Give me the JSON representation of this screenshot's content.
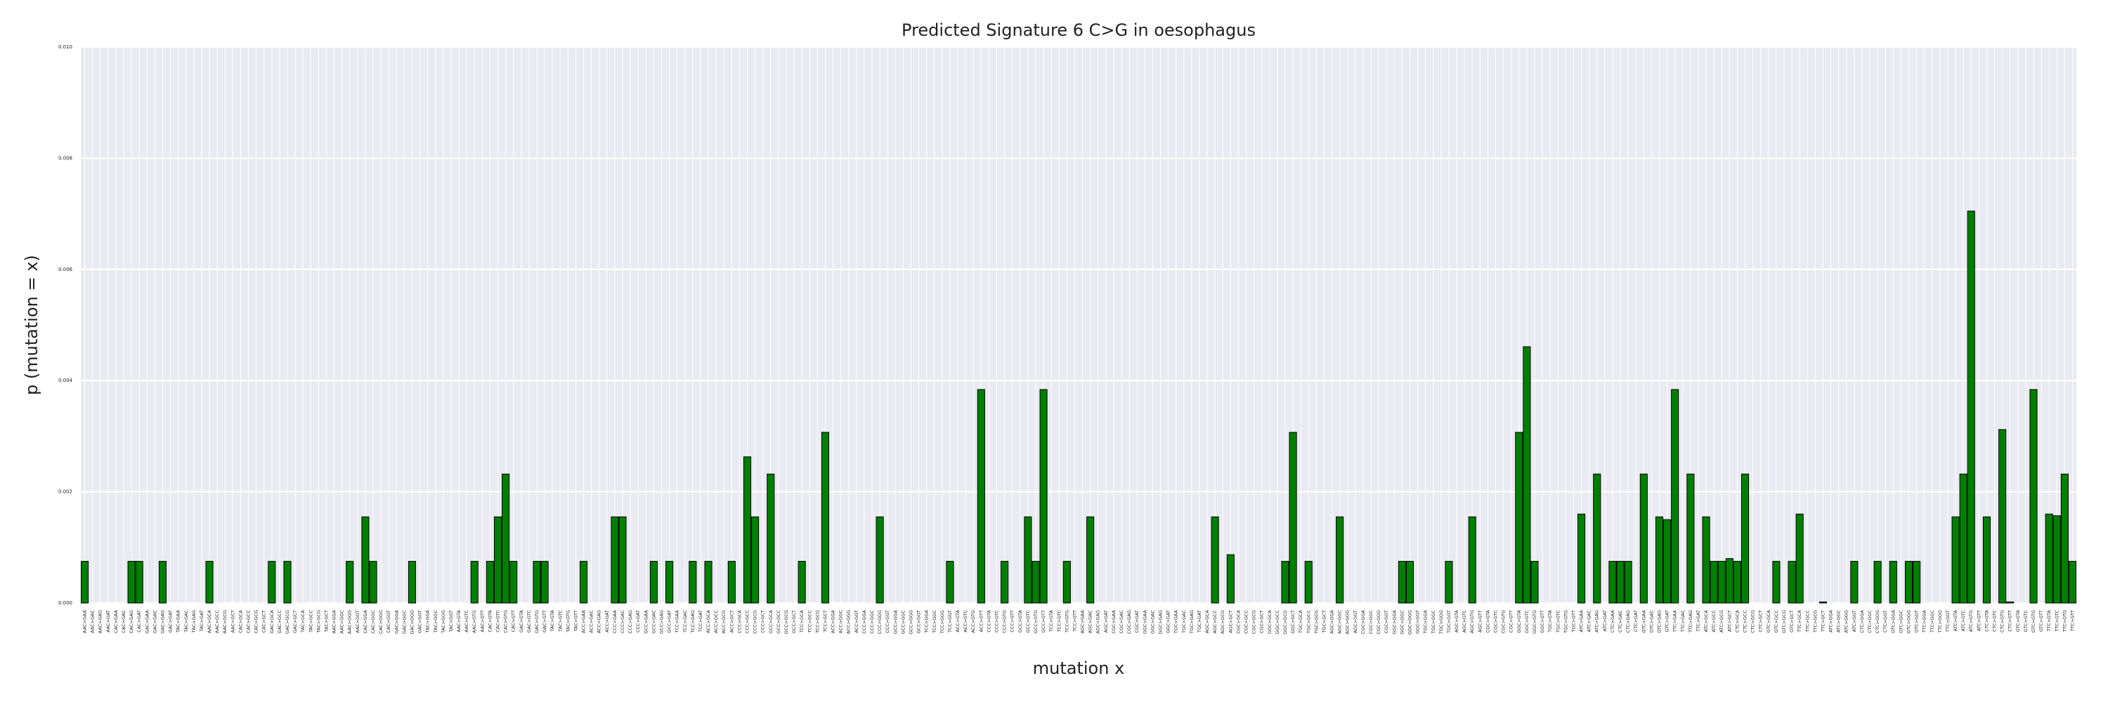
{
  "chart_data": {
    "type": "bar",
    "title": "Predicted Signature 6 C>G in oesophagus",
    "xlabel": "mutation x",
    "ylabel": "p (mutation = x)",
    "color": "#008000",
    "edgecolor": "#000000",
    "background": "#eaeaf2",
    "grid": true,
    "ylim": [
      0,
      0.01
    ],
    "yticks": [
      {
        "value": 0,
        "label": "0.000"
      },
      {
        "value": 0.002,
        "label": "0.002"
      },
      {
        "value": 0.004,
        "label": "0.004"
      },
      {
        "value": 0.006,
        "label": "0.006"
      },
      {
        "value": 0.008,
        "label": "0.008"
      },
      {
        "value": 0.01,
        "label": "0.010"
      }
    ],
    "categories": [
      "AAC>GAA",
      "AAC>GAC",
      "AAC>GAG",
      "AAC>GAT",
      "CAC>GAA",
      "CAC>GAC",
      "CAC>GAG",
      "CAC>GAT",
      "GAC>GAA",
      "GAC>GAC",
      "GAC>GAG",
      "GAC>GAT",
      "TAC>GAA",
      "TAC>GAC",
      "TAC>GAG",
      "TAC>GAT",
      "AAC>GCA",
      "AAC>GCC",
      "AAC>GCG",
      "AAC>GCT",
      "CAC>GCA",
      "CAC>GCC",
      "CAC>GCG",
      "CAC>GCT",
      "GAC>GCA",
      "GAC>GCC",
      "GAC>GCG",
      "GAC>GCT",
      "TAC>GCA",
      "TAC>GCC",
      "TAC>GCG",
      "TAC>GCT",
      "AAC>GGA",
      "AAC>GGC",
      "AAC>GGG",
      "AAC>GGT",
      "CAC>GGA",
      "CAC>GGC",
      "CAC>GGG",
      "CAC>GGT",
      "GAC>GGA",
      "GAC>GGC",
      "GAC>GGG",
      "GAC>GGT",
      "TAC>GGA",
      "TAC>GGC",
      "TAC>GGG",
      "TAC>GGT",
      "AAC>GTA",
      "AAC>GTC",
      "AAC>GTG",
      "AAC>GTT",
      "CAC>GTA",
      "CAC>GTC",
      "CAC>GTG",
      "CAC>GTT",
      "GAC>GTA",
      "GAC>GTC",
      "GAC>GTG",
      "GAC>GTT",
      "TAC>GTA",
      "TAC>GTC",
      "TAC>GTG",
      "TAC>GTT",
      "ACC>GAA",
      "ACC>GAC",
      "ACC>GAG",
      "ACC>GAT",
      "CCC>GAA",
      "CCC>GAC",
      "CCC>GAG",
      "CCC>GAT",
      "GCC>GAA",
      "GCC>GAC",
      "GCC>GAG",
      "GCC>GAT",
      "TCC>GAA",
      "TCC>GAC",
      "TCC>GAG",
      "TCC>GAT",
      "ACC>GCA",
      "ACC>GCC",
      "ACC>GCG",
      "ACC>GCT",
      "CCC>GCA",
      "CCC>GCC",
      "CCC>GCG",
      "CCC>GCT",
      "GCC>GCA",
      "GCC>GCC",
      "GCC>GCG",
      "GCC>GCT",
      "TCC>GCA",
      "TCC>GCC",
      "TCC>GCG",
      "TCC>GCT",
      "ACC>GGA",
      "ACC>GGC",
      "ACC>GGG",
      "ACC>GGT",
      "CCC>GGA",
      "CCC>GGC",
      "CCC>GGG",
      "CCC>GGT",
      "GCC>GGA",
      "GCC>GGC",
      "GCC>GGG",
      "GCC>GGT",
      "TCC>GGA",
      "TCC>GGC",
      "TCC>GGG",
      "TCC>GGT",
      "ACC>GTA",
      "ACC>GTC",
      "ACC>GTG",
      "ACC>GTT",
      "CCC>GTA",
      "CCC>GTC",
      "CCC>GTG",
      "CCC>GTT",
      "GCC>GTA",
      "GCC>GTC",
      "GCC>GTG",
      "GCC>GTT",
      "TCC>GTA",
      "TCC>GTC",
      "TCC>GTG",
      "TCC>GTT",
      "AGC>GAA",
      "AGC>GAC",
      "AGC>GAG",
      "AGC>GAT",
      "CGC>GAA",
      "CGC>GAC",
      "CGC>GAG",
      "CGC>GAT",
      "GGC>GAA",
      "GGC>GAC",
      "GGC>GAG",
      "GGC>GAT",
      "TGC>GAA",
      "TGC>GAC",
      "TGC>GAG",
      "TGC>GAT",
      "AGC>GCA",
      "AGC>GCC",
      "AGC>GCG",
      "AGC>GCT",
      "CGC>GCA",
      "CGC>GCC",
      "CGC>GCG",
      "CGC>GCT",
      "GGC>GCA",
      "GGC>GCC",
      "GGC>GCG",
      "GGC>GCT",
      "TGC>GCA",
      "TGC>GCC",
      "TGC>GCG",
      "TGC>GCT",
      "AGC>GGA",
      "AGC>GGC",
      "AGC>GGG",
      "AGC>GGT",
      "CGC>GGA",
      "CGC>GGC",
      "CGC>GGG",
      "CGC>GGT",
      "GGC>GGA",
      "GGC>GGC",
      "GGC>GGG",
      "GGC>GGT",
      "TGC>GGA",
      "TGC>GGC",
      "TGC>GGG",
      "TGC>GGT",
      "AGC>GTA",
      "AGC>GTC",
      "AGC>GTG",
      "AGC>GTT",
      "CGC>GTA",
      "CGC>GTC",
      "CGC>GTG",
      "CGC>GTT",
      "GGC>GTA",
      "GGC>GTC",
      "GGC>GTG",
      "GGC>GTT",
      "TGC>GTA",
      "TGC>GTC",
      "TGC>GTG",
      "TGC>GTT",
      "ATC>GAA",
      "ATC>GAC",
      "ATC>GAG",
      "ATC>GAT",
      "CTC>GAA",
      "CTC>GAC",
      "CTC>GAG",
      "CTC>GAT",
      "GTC>GAA",
      "GTC>GAC",
      "GTC>GAG",
      "GTC>GAT",
      "TTC>GAA",
      "TTC>GAC",
      "TTC>GAG",
      "TTC>GAT",
      "ATC>GCA",
      "ATC>GCC",
      "ATC>GCG",
      "ATC>GCT",
      "CTC>GCA",
      "CTC>GCC",
      "CTC>GCG",
      "CTC>GCT",
      "GTC>GCA",
      "GTC>GCC",
      "GTC>GCG",
      "GTC>GCT",
      "TTC>GCA",
      "TTC>GCC",
      "TTC>GCG",
      "TTC>GCT",
      "ATC>GGA",
      "ATC>GGC",
      "ATC>GGG",
      "ATC>GGT",
      "CTC>GGA",
      "CTC>GGC",
      "CTC>GGG",
      "CTC>GGT",
      "GTC>GGA",
      "GTC>GGC",
      "GTC>GGG",
      "GTC>GGT",
      "TTC>GGA",
      "TTC>GGC",
      "TTC>GGG",
      "TTC>GGT",
      "ATC>GTA",
      "ATC>GTC",
      "ATC>GTG",
      "ATC>GTT",
      "CTC>GTA",
      "CTC>GTC",
      "CTC>GTG",
      "CTC>GTT",
      "GTC>GTA",
      "GTC>GTC",
      "GTC>GTG",
      "GTC>GTT",
      "TTC>GTA",
      "TTC>GTC",
      "TTC>GTG",
      "TTC>GTT"
    ],
    "values": [
      0.00075,
      0,
      0,
      0,
      0,
      0,
      0.00075,
      0.00075,
      0,
      0,
      0.00075,
      0,
      0,
      0,
      0,
      0,
      0.00075,
      0,
      0,
      0,
      0,
      0,
      0,
      0,
      0.00075,
      0,
      0.00075,
      0,
      0,
      0,
      0,
      0,
      0,
      0,
      0.00075,
      0,
      0.00155,
      0.00075,
      0,
      0,
      0,
      0,
      0.00075,
      0,
      0,
      0,
      0,
      0,
      0,
      0,
      0.00075,
      0,
      0.00075,
      0.00155,
      0.00232,
      0.00075,
      0,
      0,
      0.00075,
      0.00075,
      0,
      0,
      0,
      0,
      0.00075,
      0,
      0,
      0,
      0.00155,
      0.00155,
      0,
      0,
      0,
      0.00075,
      0,
      0.00075,
      0,
      0,
      0.00075,
      0,
      0.00075,
      0,
      0,
      0.00075,
      0,
      0.00263,
      0.00155,
      0,
      0.00232,
      0,
      0,
      0,
      0.00075,
      0,
      0,
      0.00307,
      0,
      0,
      0,
      0,
      0,
      0,
      0.00155,
      0,
      0,
      0,
      0,
      0,
      0,
      0,
      0,
      0.00075,
      0,
      0,
      0,
      0.00384,
      0,
      0,
      0.00075,
      0,
      0,
      0.00155,
      0.00075,
      0.00384,
      0,
      0,
      0.00075,
      0,
      0,
      0.00155,
      0,
      0,
      0,
      0,
      0,
      0,
      0,
      0,
      0,
      0,
      0,
      0,
      0,
      0,
      0,
      0.00155,
      0,
      0.00087,
      0,
      0,
      0,
      0,
      0,
      0,
      0.00075,
      0.00307,
      0,
      0.00075,
      0,
      0,
      0,
      0.00155,
      0,
      0,
      0,
      0,
      0,
      0,
      0,
      0.00075,
      0.00075,
      0,
      0,
      0,
      0,
      0.00075,
      0,
      0,
      0.00155,
      0,
      0,
      0,
      0,
      0,
      0.00307,
      0.00461,
      0.00075,
      0,
      0,
      0,
      0,
      0,
      0.0016,
      0,
      0.00232,
      0,
      0.00075,
      0.00075,
      0.00075,
      0,
      0.00232,
      0,
      0.00155,
      0.0015,
      0.00384,
      0,
      0.00232,
      0,
      0.00155,
      0.00075,
      0.00075,
      0.0008,
      0.00075,
      0.00232,
      0,
      0,
      0,
      0.00075,
      0,
      0.00075,
      0.0016,
      0,
      0,
      2e-05,
      0,
      0,
      0,
      0.00075,
      0,
      0,
      0.00075,
      0,
      0.00075,
      0,
      0.00075,
      0.00075,
      0,
      0,
      0,
      0,
      0.00155,
      0.00232,
      0.00705,
      0,
      0.00155,
      0,
      0.00312,
      2e-05,
      0,
      0,
      0.00384,
      0,
      0.0016,
      0.00157,
      0.00232,
      0.00075
    ]
  }
}
